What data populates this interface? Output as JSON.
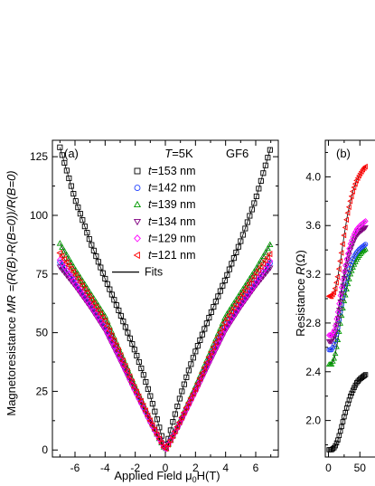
{
  "chart_data": [
    {
      "panel": "(a)",
      "type": "scatter",
      "annotation_temp": "T=5K",
      "annotation_sample": "GF6",
      "xlabel_main": "Applied Field ",
      "xlabel_sym": "μ",
      "xlabel_sub": "0",
      "xlabel_unit": "H(T)",
      "ylabel_prefix": "Magnetoresistance ",
      "ylabel_formula": "MR =(R(B)-R(B=0))/R(B=0)",
      "xlim": [
        -7.5,
        7.5
      ],
      "ylim": [
        -3,
        132
      ],
      "xticks": [
        -6,
        -4,
        -2,
        0,
        2,
        4,
        6
      ],
      "xtick_labels": [
        "-6",
        "-4",
        "-2",
        "0",
        "2",
        "4",
        "6"
      ],
      "yticks": [
        0,
        25,
        50,
        75,
        100,
        125
      ],
      "ytick_labels": [
        "0",
        "25",
        "50",
        "75",
        "100",
        "125"
      ],
      "fit_label": "Fits",
      "series": [
        {
          "name": "t=153 nm",
          "name_var": "t",
          "name_val": "=153 nm",
          "marker": "square",
          "color": "#000000",
          "points": [
            [
              0,
              0
            ],
            [
              0.5,
              12
            ],
            [
              1,
              23
            ],
            [
              1.5,
              33
            ],
            [
              2,
              42
            ],
            [
              3,
              58
            ],
            [
              4,
              73
            ],
            [
              5,
              89
            ],
            [
              6,
              107
            ],
            [
              7,
              129
            ]
          ]
        },
        {
          "name": "t=142 nm",
          "name_var": "t",
          "name_val": "=142 nm",
          "marker": "circle",
          "color": "#1f3fff",
          "points": [
            [
              0,
              0
            ],
            [
              0.5,
              6
            ],
            [
              1,
              12
            ],
            [
              1.5,
              19
            ],
            [
              2,
              26
            ],
            [
              3,
              40
            ],
            [
              4,
              53
            ],
            [
              5,
              63
            ],
            [
              6,
              72
            ],
            [
              7,
              80
            ]
          ]
        },
        {
          "name": "t=139 nm",
          "name_var": "t",
          "name_val": "=139 nm",
          "marker": "triangle-up",
          "color": "#009900",
          "points": [
            [
              0,
              0
            ],
            [
              0.5,
              6
            ],
            [
              1,
              13
            ],
            [
              1.5,
              20
            ],
            [
              2,
              27
            ],
            [
              3,
              42
            ],
            [
              4,
              57
            ],
            [
              5,
              67
            ],
            [
              6,
              77
            ],
            [
              7,
              88
            ]
          ]
        },
        {
          "name": "t=134 nm",
          "name_var": "t",
          "name_val": "=134 nm",
          "marker": "triangle-down",
          "color": "#800080",
          "points": [
            [
              0,
              0
            ],
            [
              0.5,
              5.5
            ],
            [
              1,
              11.5
            ],
            [
              1.5,
              18
            ],
            [
              2,
              24.5
            ],
            [
              3,
              38
            ],
            [
              4,
              51
            ],
            [
              5,
              61
            ],
            [
              6,
              70
            ],
            [
              7,
              78
            ]
          ]
        },
        {
          "name": "t=129 nm",
          "name_var": "t",
          "name_val": "=129 nm",
          "marker": "diamond",
          "color": "#ff00ff",
          "points": [
            [
              0,
              0
            ],
            [
              0.5,
              5.8
            ],
            [
              1,
              12
            ],
            [
              1.5,
              18.5
            ],
            [
              2,
              25
            ],
            [
              3,
              39
            ],
            [
              4,
              52
            ],
            [
              5,
              62
            ],
            [
              6,
              71
            ],
            [
              7,
              81
            ]
          ]
        },
        {
          "name": "t=121 nm",
          "name_var": "t",
          "name_val": "=121 nm",
          "marker": "triangle-left",
          "color": "#ff0000",
          "points": [
            [
              0,
              0
            ],
            [
              0.5,
              6
            ],
            [
              1,
              12.5
            ],
            [
              1.5,
              19.5
            ],
            [
              2,
              26
            ],
            [
              3,
              41
            ],
            [
              4,
              55
            ],
            [
              5,
              65
            ],
            [
              6,
              75
            ],
            [
              7,
              84
            ]
          ]
        }
      ]
    },
    {
      "panel": "(b)",
      "type": "scatter",
      "ylabel": "Resistance ",
      "ylabel_sym": "R",
      "ylabel_unit": "(Ω)",
      "xlim": [
        -5,
        110
      ],
      "ylim": [
        1.7,
        4.3
      ],
      "xticks": [
        0,
        50
      ],
      "xtick_labels": [
        "0",
        "50"
      ],
      "yticks": [
        2.0,
        2.4,
        2.8,
        3.2,
        3.6,
        4.0
      ],
      "ytick_labels": [
        "2.0",
        "2.4",
        "2.8",
        "3.2",
        "3.6",
        "4.0"
      ],
      "series": [
        {
          "name": "t=153 nm",
          "marker": "square",
          "color": "#000000",
          "points": [
            [
              1,
              1.76
            ],
            [
              5,
              1.76
            ],
            [
              10,
              1.78
            ],
            [
              15,
              1.84
            ],
            [
              20,
              1.93
            ],
            [
              25,
              2.03
            ],
            [
              30,
              2.12
            ],
            [
              35,
              2.2
            ],
            [
              40,
              2.26
            ],
            [
              45,
              2.31
            ],
            [
              50,
              2.34
            ],
            [
              55,
              2.36
            ],
            [
              60,
              2.38
            ]
          ]
        },
        {
          "name": "t=121 nm",
          "marker": "triangle-left",
          "color": "#ff0000",
          "points": [
            [
              1,
              3.02
            ],
            [
              5,
              3.02
            ],
            [
              10,
              3.06
            ],
            [
              15,
              3.18
            ],
            [
              20,
              3.34
            ],
            [
              25,
              3.52
            ],
            [
              30,
              3.68
            ],
            [
              35,
              3.8
            ],
            [
              40,
              3.9
            ],
            [
              45,
              3.97
            ],
            [
              50,
              4.02
            ],
            [
              55,
              4.06
            ],
            [
              60,
              4.09
            ]
          ]
        },
        {
          "name": "t=139 nm",
          "marker": "triangle-up",
          "color": "#009900",
          "points": [
            [
              1,
              2.46
            ],
            [
              5,
              2.46
            ],
            [
              10,
              2.52
            ],
            [
              15,
              2.66
            ],
            [
              20,
              2.83
            ],
            [
              25,
              2.98
            ],
            [
              30,
              3.1
            ],
            [
              35,
              3.2
            ],
            [
              40,
              3.27
            ],
            [
              45,
              3.32
            ],
            [
              50,
              3.36
            ],
            [
              55,
              3.39
            ],
            [
              60,
              3.41
            ]
          ]
        },
        {
          "name": "t=142 nm",
          "marker": "circle",
          "color": "#1f3fff",
          "points": [
            [
              1,
              2.58
            ],
            [
              5,
              2.58
            ],
            [
              10,
              2.63
            ],
            [
              15,
              2.76
            ],
            [
              20,
              2.92
            ],
            [
              25,
              3.07
            ],
            [
              30,
              3.19
            ],
            [
              35,
              3.28
            ],
            [
              40,
              3.34
            ],
            [
              45,
              3.38
            ],
            [
              50,
              3.41
            ],
            [
              55,
              3.43
            ],
            [
              60,
              3.45
            ]
          ]
        },
        {
          "name": "t=134 nm",
          "marker": "triangle-down",
          "color": "#800080",
          "points": [
            [
              1,
              2.65
            ],
            [
              5,
              2.65
            ],
            [
              10,
              2.7
            ],
            [
              15,
              2.84
            ],
            [
              20,
              3.01
            ],
            [
              25,
              3.17
            ],
            [
              30,
              3.3
            ],
            [
              35,
              3.4
            ],
            [
              40,
              3.47
            ],
            [
              45,
              3.52
            ],
            [
              50,
              3.55
            ],
            [
              55,
              3.57
            ],
            [
              60,
              3.59
            ]
          ]
        },
        {
          "name": "t=129 nm",
          "marker": "diamond",
          "color": "#ff00ff",
          "points": [
            [
              1,
              2.7
            ],
            [
              5,
              2.7
            ],
            [
              10,
              2.75
            ],
            [
              15,
              2.89
            ],
            [
              20,
              3.06
            ],
            [
              25,
              3.22
            ],
            [
              30,
              3.35
            ],
            [
              35,
              3.45
            ],
            [
              40,
              3.52
            ],
            [
              45,
              3.57
            ],
            [
              50,
              3.6
            ],
            [
              55,
              3.62
            ],
            [
              60,
              3.64
            ]
          ]
        }
      ]
    }
  ]
}
